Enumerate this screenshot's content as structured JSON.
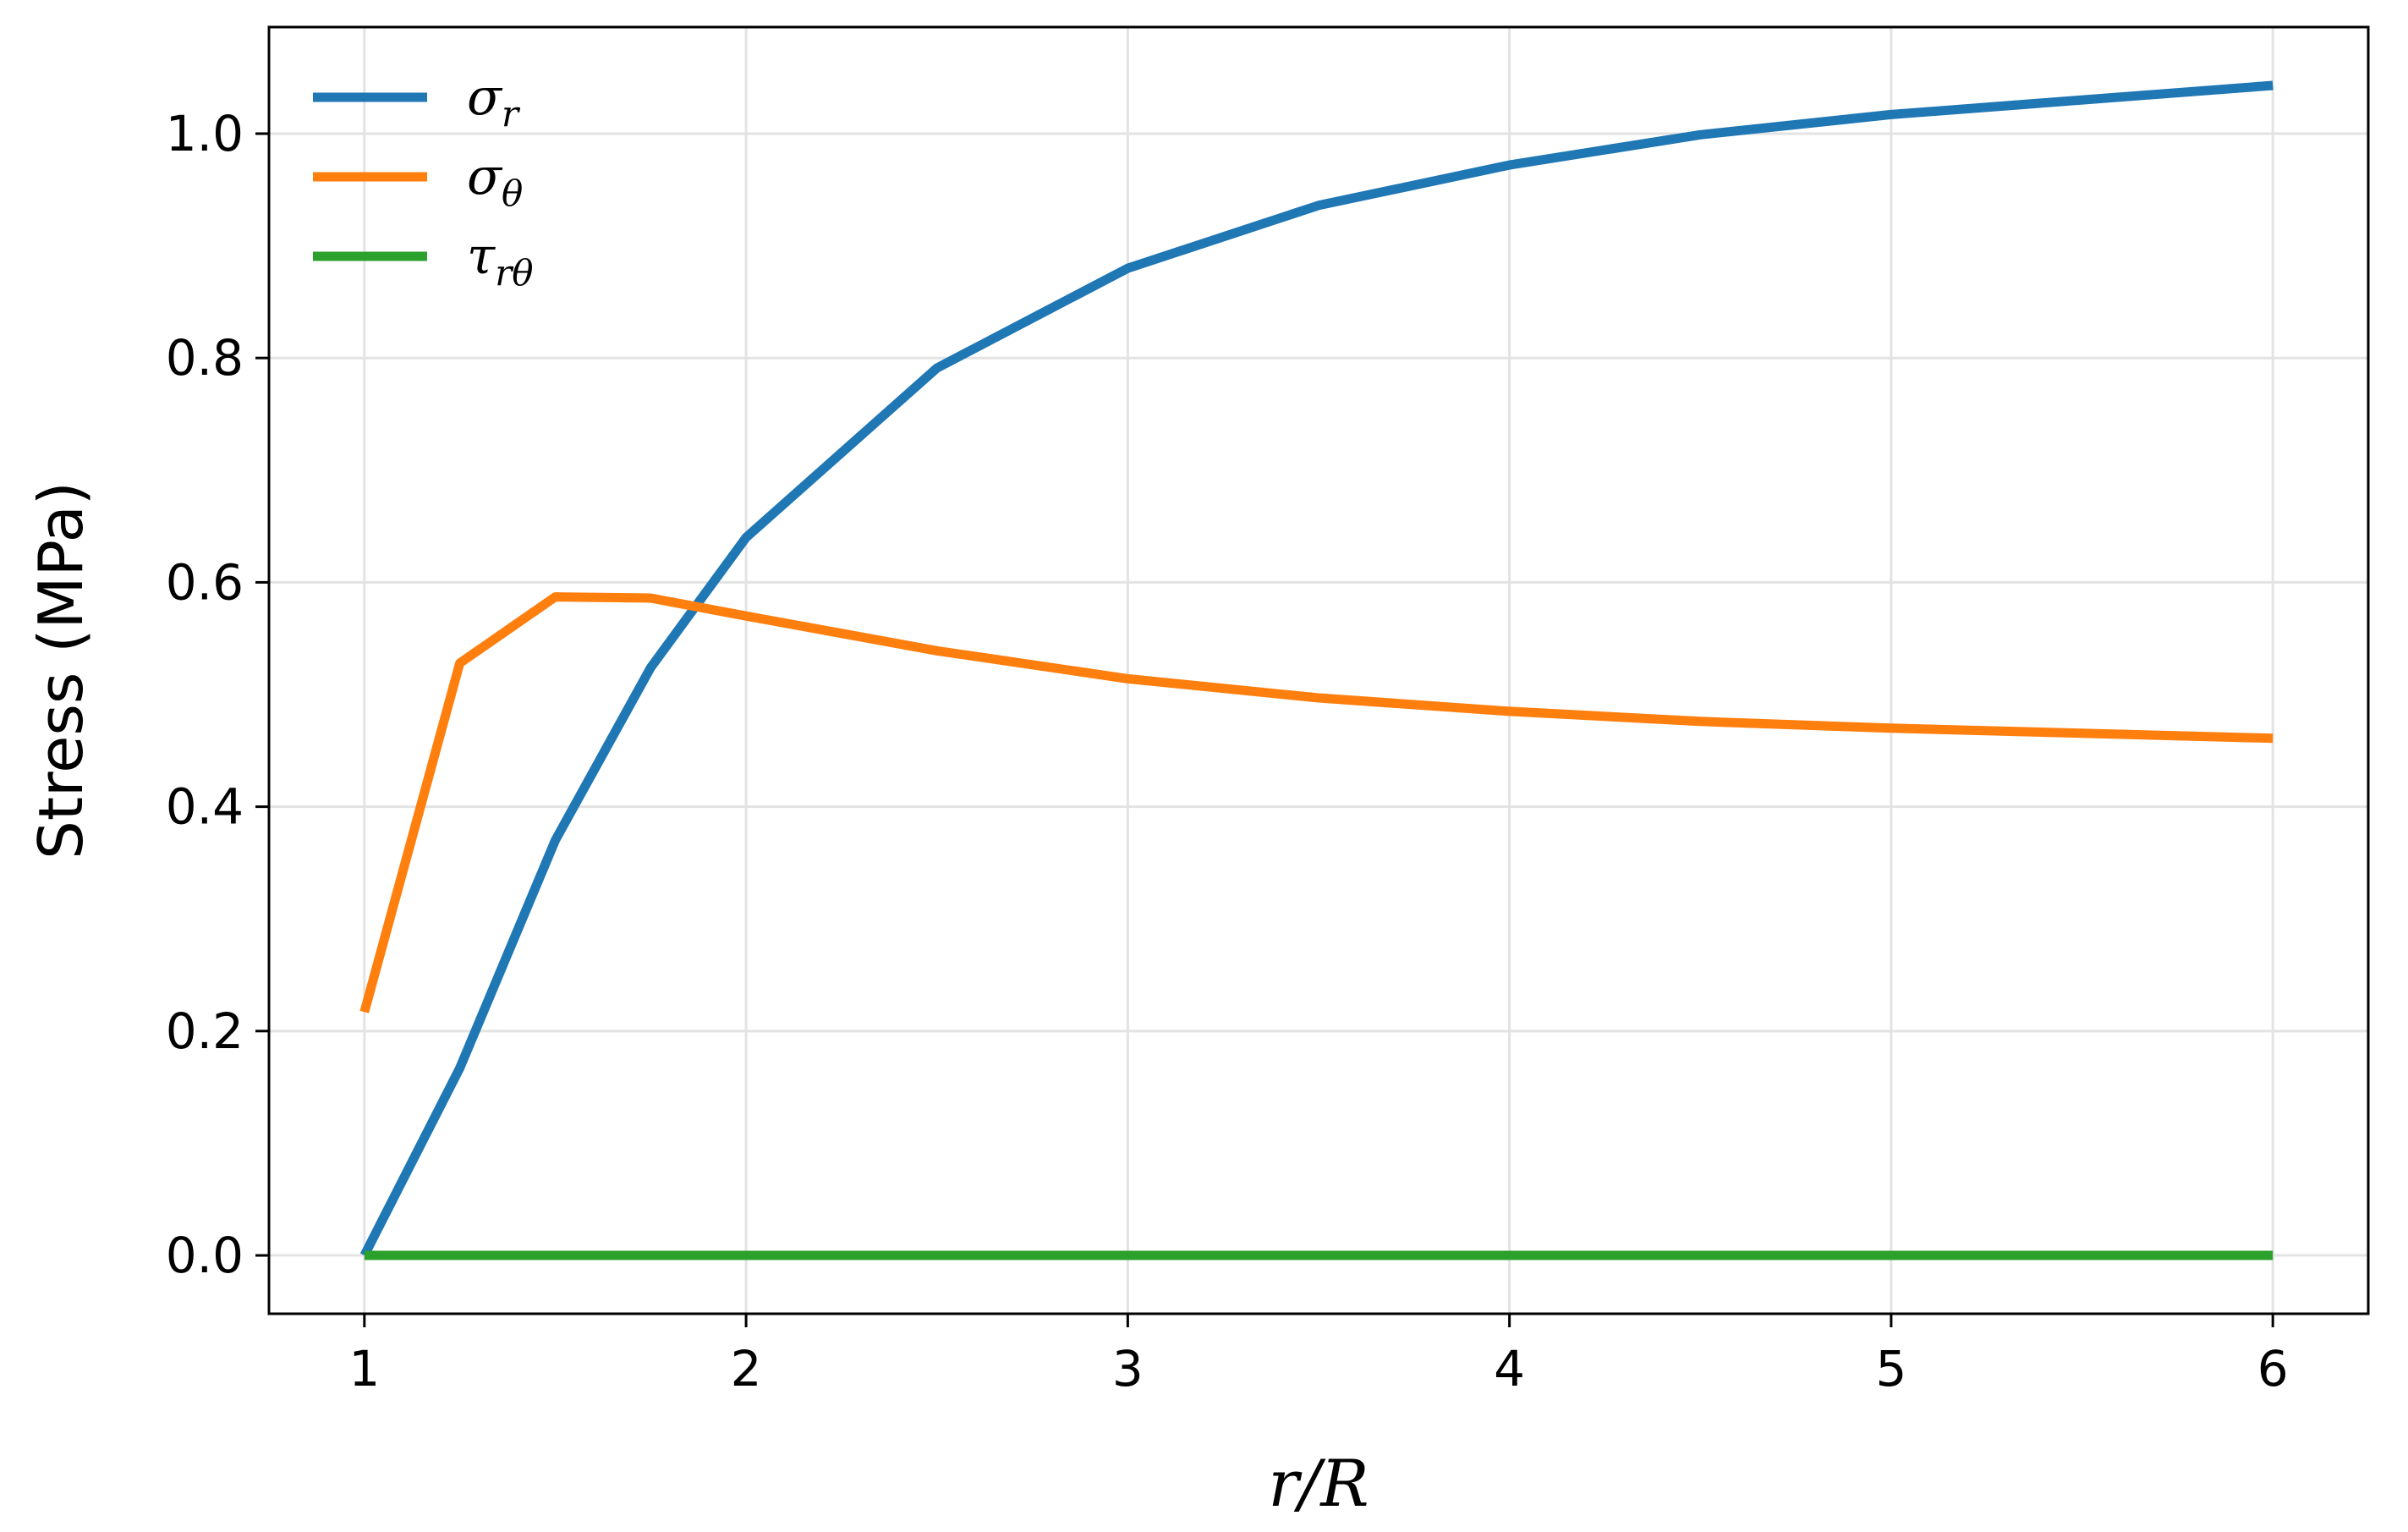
{
  "chart_data": {
    "type": "line",
    "xlabel": "r/R",
    "ylabel": "Stress (MPa)",
    "xlim": [
      0.75,
      6.25
    ],
    "ylim": [
      -0.052,
      1.095
    ],
    "xticks": [
      1,
      2,
      3,
      4,
      5,
      6
    ],
    "xtick_labels": [
      "1",
      "2",
      "3",
      "4",
      "5",
      "6"
    ],
    "yticks": [
      0.0,
      0.2,
      0.4,
      0.6,
      0.8,
      1.0
    ],
    "ytick_labels": [
      "0.0",
      "0.2",
      "0.4",
      "0.6",
      "0.8",
      "1.0"
    ],
    "grid": true,
    "legend_position": "top-left",
    "x": [
      1.0,
      1.25,
      1.5,
      1.75,
      2.0,
      2.5,
      3.0,
      3.5,
      4.0,
      4.5,
      5.0,
      6.0
    ],
    "series": [
      {
        "name": "σ",
        "name_sub": "r",
        "color": "#1f77b4",
        "values": [
          0.0,
          0.167,
          0.37,
          0.524,
          0.64,
          0.791,
          0.88,
          0.936,
          0.972,
          0.999,
          1.017,
          1.043
        ]
      },
      {
        "name": "σ",
        "name_sub": "θ",
        "color": "#ff7f0e",
        "values": [
          0.217,
          0.528,
          0.587,
          0.586,
          0.57,
          0.539,
          0.514,
          0.497,
          0.485,
          0.476,
          0.47,
          0.461
        ]
      },
      {
        "name": "τ",
        "name_sub": "rθ",
        "color": "#2ca02c",
        "values": [
          0.0,
          0.0,
          0.0,
          0.0,
          0.0,
          0.0,
          0.0,
          0.0,
          0.0,
          0.0,
          0.0,
          0.0
        ]
      }
    ]
  }
}
